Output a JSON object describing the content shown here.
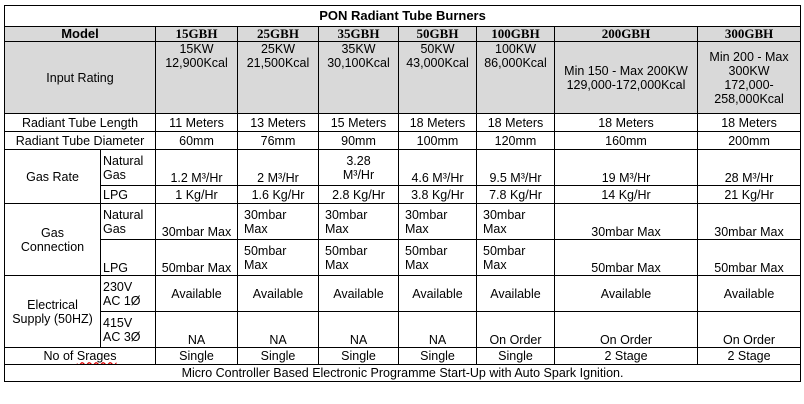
{
  "title": "PON Radiant Tube Burners",
  "model_header": "Model",
  "models": [
    "15GBH",
    "25GBH",
    "35GBH",
    "50GBH",
    "100GBH",
    "200GBH",
    "300GBH"
  ],
  "rows": {
    "input_rating": {
      "label": "Input Rating",
      "values": [
        [
          "15KW",
          "12,900Kcal"
        ],
        [
          "25KW",
          "21,500Kcal"
        ],
        [
          "35KW",
          "30,100Kcal"
        ],
        [
          "50KW",
          "43,000Kcal"
        ],
        [
          "100KW",
          "86,000Kcal"
        ],
        [
          "Min 150 - Max 200KW   129,000-172,000Kcal"
        ],
        [
          "Min 200 - Max 300KW 172,000-258,000Kcal"
        ]
      ]
    },
    "tube_length": {
      "label": "Radiant Tube Length",
      "values": [
        "11 Meters",
        "13 Meters",
        "15 Meters",
        "18 Meters",
        "18 Meters",
        "18 Meters",
        "18 Meters"
      ]
    },
    "tube_diameter": {
      "label": "Radiant Tube Diameter",
      "values": [
        "60mm",
        "76mm",
        "90mm",
        "100mm",
        "120mm",
        "160mm",
        "200mm"
      ]
    },
    "gas_rate": {
      "label": "Gas Rate",
      "natural_label": "Natural Gas",
      "natural": [
        "1.2 M³/Hr",
        "2 M³/Hr",
        "3.28 M³/Hr",
        "4.6 M³/Hr",
        "9.5 M³/Hr",
        "19 M³/Hr",
        "28 M³/Hr"
      ],
      "lpg_label": "LPG",
      "lpg": [
        "1 Kg/Hr",
        "1.6 Kg/Hr",
        "2.8 Kg/Hr",
        "3.8 Kg/Hr",
        "7.8 Kg/Hr",
        "14 Kg/Hr",
        "21 Kg/Hr"
      ]
    },
    "gas_connection": {
      "label": "Gas Connection",
      "natural_label": "Natural Gas",
      "natural": [
        "30mbar Max",
        "30mbar Max",
        "30mbar Max",
        "30mbar Max",
        "30mbar Max",
        "30mbar Max",
        "30mbar Max"
      ],
      "lpg_label": "LPG",
      "lpg": [
        "50mbar Max",
        "50mbar Max",
        "50mbar Max",
        "50mbar Max",
        "50mbar Max",
        "50mbar Max",
        "50mbar Max"
      ]
    },
    "electrical": {
      "label": "Electrical Supply (50HZ)",
      "single_label": "230V AC 1Ø",
      "single": [
        "Available",
        "Available",
        "Available",
        "Available",
        "Available",
        "Available",
        "Available"
      ],
      "three_label": "415V AC 3Ø",
      "three": [
        "NA",
        "NA",
        "NA",
        "NA",
        "On Order",
        "On Order",
        "On Order"
      ]
    },
    "stages": {
      "label_prefix": "No of ",
      "label_word": "Srages",
      "values": [
        "Single",
        "Single",
        "Single",
        "Single",
        "Single",
        "2 Stage",
        "2 Stage"
      ]
    }
  },
  "footer": "Micro Controller Based Electronic Programme Start-Up with Auto Spark Ignition."
}
